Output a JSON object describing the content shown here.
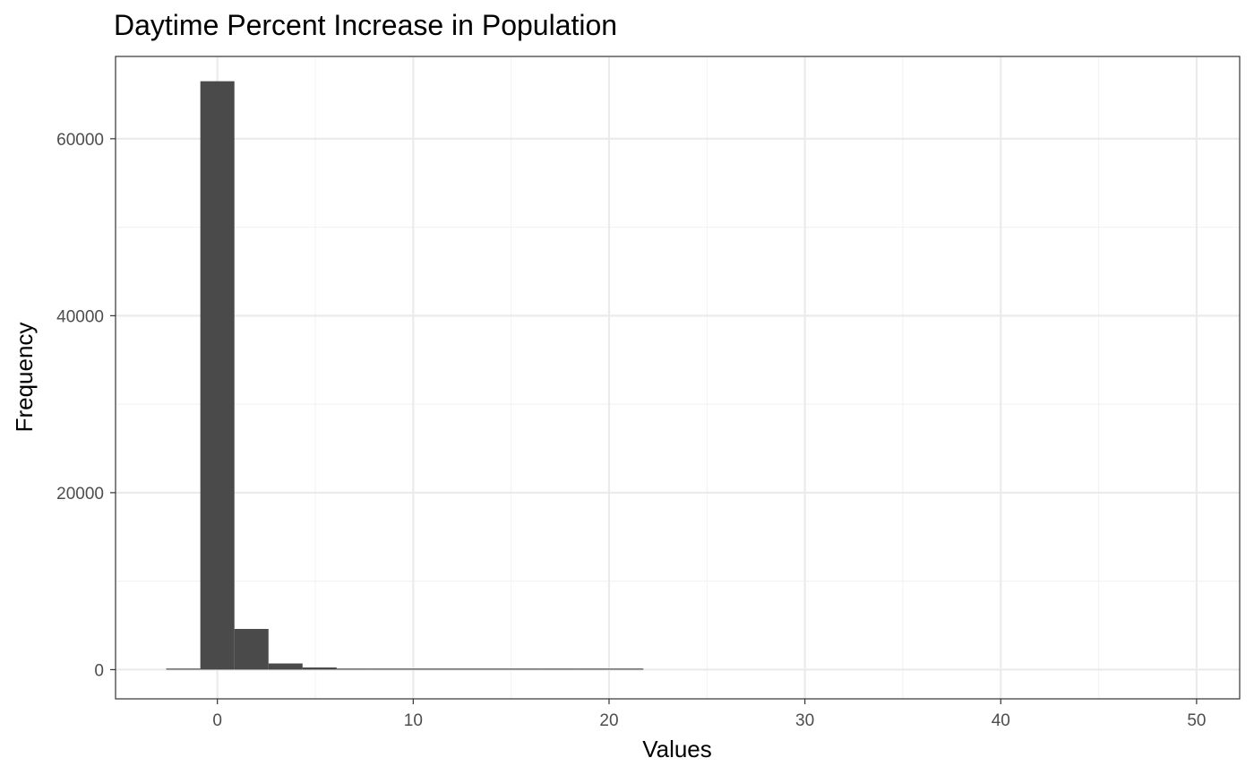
{
  "chart_data": {
    "type": "bar",
    "title": "Daytime Percent Increase in Population",
    "xlabel": "Values",
    "ylabel": "Frequency",
    "xlim": [
      -5.2,
      52.2
    ],
    "ylim": [
      -3300,
      69300
    ],
    "x_ticks": [
      0,
      10,
      20,
      30,
      40,
      50
    ],
    "y_ticks": [
      0,
      20000,
      40000,
      60000
    ],
    "x_tick_labels": [
      "0",
      "10",
      "20",
      "30",
      "40",
      "50"
    ],
    "y_tick_labels": [
      "0",
      "20000",
      "40000",
      "60000"
    ],
    "grid": true,
    "bin_width": 1.74,
    "bins": [
      {
        "x0": -2.61,
        "x1": -0.87,
        "count": 40
      },
      {
        "x0": -0.87,
        "x1": 0.87,
        "count": 66500
      },
      {
        "x0": 0.87,
        "x1": 2.61,
        "count": 4600
      },
      {
        "x0": 2.61,
        "x1": 4.35,
        "count": 700
      },
      {
        "x0": 4.35,
        "x1": 6.09,
        "count": 250
      },
      {
        "x0": 6.09,
        "x1": 7.83,
        "count": 120
      },
      {
        "x0": 7.83,
        "x1": 9.57,
        "count": 60
      },
      {
        "x0": 9.57,
        "x1": 11.31,
        "count": 40
      },
      {
        "x0": 11.31,
        "x1": 13.05,
        "count": 30
      },
      {
        "x0": 13.05,
        "x1": 14.79,
        "count": 20
      },
      {
        "x0": 14.79,
        "x1": 16.53,
        "count": 15
      },
      {
        "x0": 16.53,
        "x1": 18.27,
        "count": 12
      },
      {
        "x0": 18.27,
        "x1": 20.01,
        "count": 0
      },
      {
        "x0": 20.01,
        "x1": 21.75,
        "count": 8
      }
    ],
    "colors": {
      "bar": "#4a4a4a",
      "panel_border": "#333333",
      "grid_major": "#ebebeb",
      "grid_minor": "#f3f3f3",
      "tick_label": "#4d4d4d"
    }
  }
}
